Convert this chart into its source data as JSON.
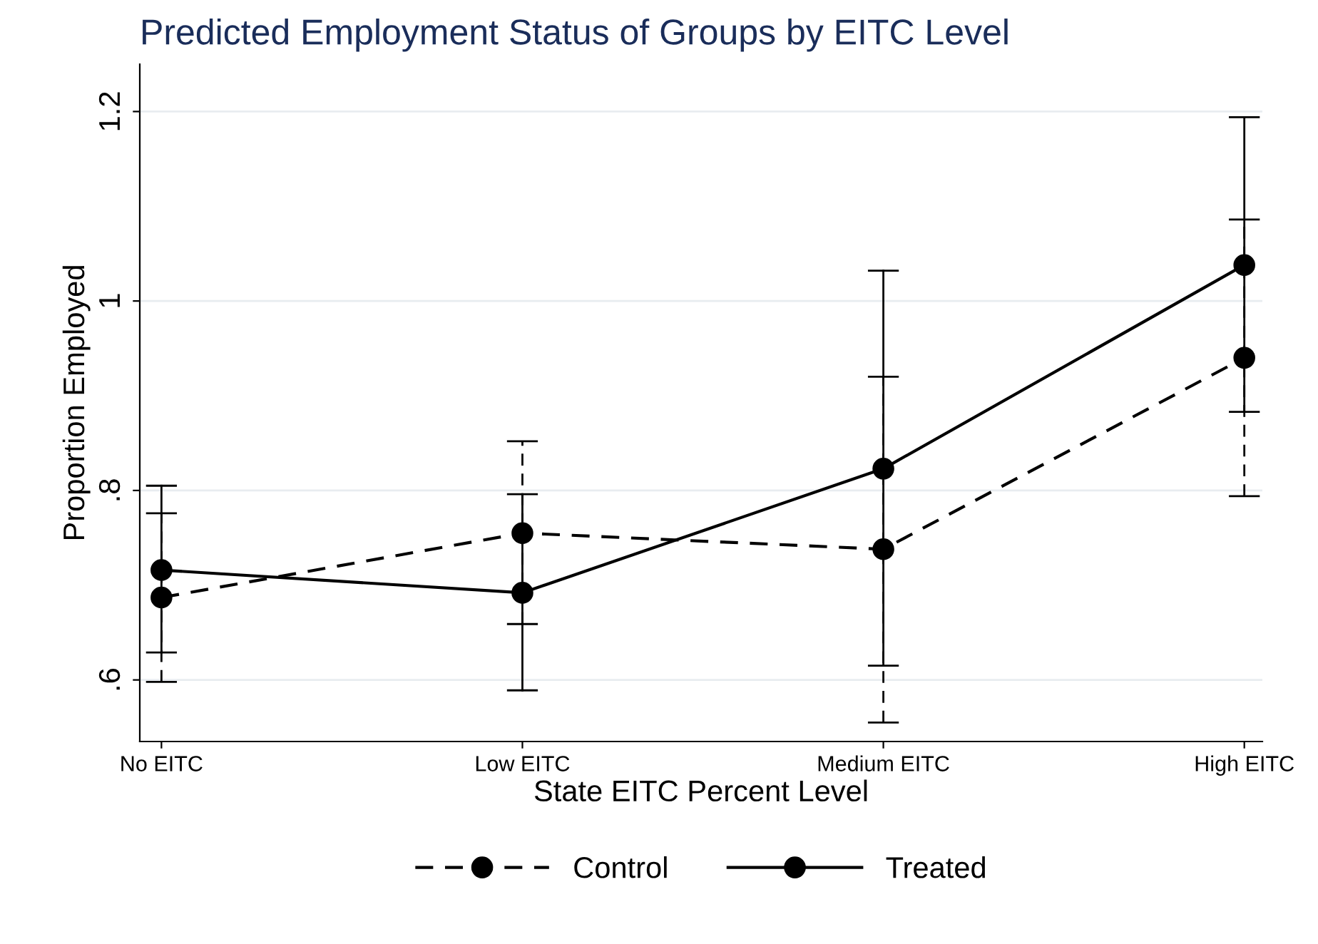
{
  "chart_data": {
    "type": "line",
    "title": "Predicted Employment Status of Groups by EITC Level",
    "xlabel": "State EITC Percent Level",
    "ylabel": "Proportion Employed",
    "categories": [
      "No EITC",
      "Low EITC",
      "Medium EITC",
      "High EITC"
    ],
    "series": [
      {
        "name": "Control",
        "color": "#000000",
        "line_style": "dashed",
        "values": [
          0.687,
          0.755,
          0.738,
          0.94
        ],
        "errors": [
          [
            0.598,
            0.776
          ],
          [
            0.659,
            0.852
          ],
          [
            0.555,
            0.92
          ],
          [
            0.794,
            1.086
          ]
        ]
      },
      {
        "name": "Treated",
        "color": "#000000",
        "line_style": "solid",
        "values": [
          0.716,
          0.692,
          0.823,
          1.038
        ],
        "errors": [
          [
            0.629,
            0.805
          ],
          [
            0.589,
            0.796
          ],
          [
            0.615,
            1.032
          ],
          [
            0.883,
            1.194
          ]
        ]
      }
    ],
    "marker": "circle",
    "ylim": [
      0.535,
      1.25
    ],
    "yticks": [
      {
        "value": 0.6,
        "label": ".6"
      },
      {
        "value": 0.8,
        "label": ".8"
      },
      1,
      1.2
    ],
    "grid": "y",
    "legend": "bottom"
  }
}
